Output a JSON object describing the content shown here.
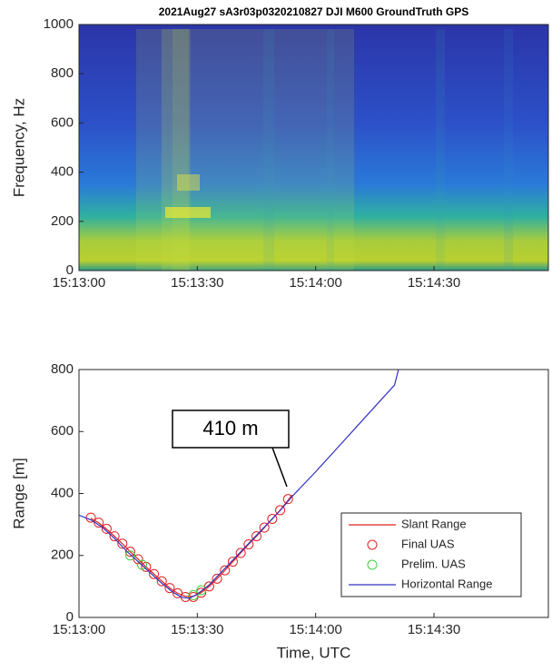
{
  "chart_data": [
    {
      "type": "spectrogram",
      "title": "2021Aug27 sA3r03p0320210827 DJI M600 GroundTruth GPS",
      "ylabel": "Frequency, Hz",
      "xlim": [
        "15:13:00",
        "15:14:59"
      ],
      "xticks": [
        "15:13:00",
        "15:13:30",
        "15:14:00",
        "15:14:30"
      ],
      "ylim": [
        0,
        1000
      ],
      "yticks": [
        0,
        200,
        400,
        600,
        800,
        1000
      ]
    },
    {
      "type": "line",
      "xlabel": "Time, UTC",
      "ylabel": "Range [m]",
      "xlim": [
        "15:13:00",
        "15:14:59"
      ],
      "xticks": [
        "15:13:00",
        "15:13:30",
        "15:14:00",
        "15:14:30"
      ],
      "ylim": [
        0,
        800
      ],
      "yticks": [
        0,
        200,
        400,
        600,
        800
      ],
      "annotation": "410 m",
      "legend": "lower right",
      "series": [
        {
          "name": "Slant Range",
          "color": "#e02020",
          "style": "line",
          "x": [
            "15:13:03",
            "15:13:05",
            "15:13:07",
            "15:13:09",
            "15:13:11",
            "15:13:13",
            "15:13:15",
            "15:13:17",
            "15:13:19",
            "15:13:21",
            "15:13:23",
            "15:13:25",
            "15:13:27",
            "15:13:29",
            "15:13:31",
            "15:13:33",
            "15:13:35",
            "15:13:37",
            "15:13:39",
            "15:13:41",
            "15:13:43",
            "15:13:45",
            "15:13:47",
            "15:13:49",
            "15:13:51",
            "15:13:53",
            "15:13:54"
          ],
          "values": [
            320,
            305,
            285,
            262,
            238,
            212,
            188,
            163,
            140,
            117,
            95,
            78,
            68,
            68,
            80,
            100,
            125,
            152,
            180,
            208,
            236,
            262,
            290,
            318,
            346,
            378,
            395
          ]
        },
        {
          "name": "Final UAS",
          "color": "#e02020",
          "style": "markers",
          "x": [
            "15:13:03",
            "15:13:05",
            "15:13:07",
            "15:13:09",
            "15:13:11",
            "15:13:13",
            "15:13:15",
            "15:13:17",
            "15:13:19",
            "15:13:21",
            "15:13:23",
            "15:13:25",
            "15:13:27",
            "15:13:29",
            "15:13:31",
            "15:13:33",
            "15:13:35",
            "15:13:37",
            "15:13:39",
            "15:13:41",
            "15:13:43",
            "15:13:45",
            "15:13:47",
            "15:13:49",
            "15:13:51",
            "15:13:53"
          ],
          "values": [
            322,
            306,
            286,
            262,
            238,
            212,
            188,
            163,
            140,
            117,
            95,
            78,
            66,
            66,
            80,
            100,
            125,
            152,
            180,
            208,
            236,
            262,
            290,
            318,
            346,
            382
          ]
        },
        {
          "name": "Prelim. UAS",
          "color": "#40d040",
          "style": "markers",
          "x": [
            "15:13:13",
            "15:13:16",
            "15:13:29",
            "15:13:31"
          ],
          "values": [
            200,
            170,
            72,
            88
          ]
        },
        {
          "name": "Horizontal Range",
          "color": "#3030c0",
          "style": "line",
          "x": [
            "15:13:00",
            "15:13:03",
            "15:13:06",
            "15:13:09",
            "15:13:12",
            "15:13:15",
            "15:13:18",
            "15:13:21",
            "15:13:24",
            "15:13:26",
            "15:13:28",
            "15:13:30",
            "15:13:33",
            "15:13:36",
            "15:13:39",
            "15:13:42",
            "15:13:45",
            "15:13:48",
            "15:13:51",
            "15:13:54",
            "15:13:57",
            "15:14:00",
            "15:14:05",
            "15:14:10",
            "15:14:15",
            "15:14:20",
            "15:14:21"
          ],
          "values": [
            330,
            315,
            290,
            255,
            215,
            180,
            145,
            110,
            80,
            65,
            62,
            75,
            105,
            145,
            185,
            225,
            265,
            305,
            345,
            390,
            430,
            470,
            540,
            610,
            680,
            750,
            800
          ]
        }
      ]
    }
  ]
}
